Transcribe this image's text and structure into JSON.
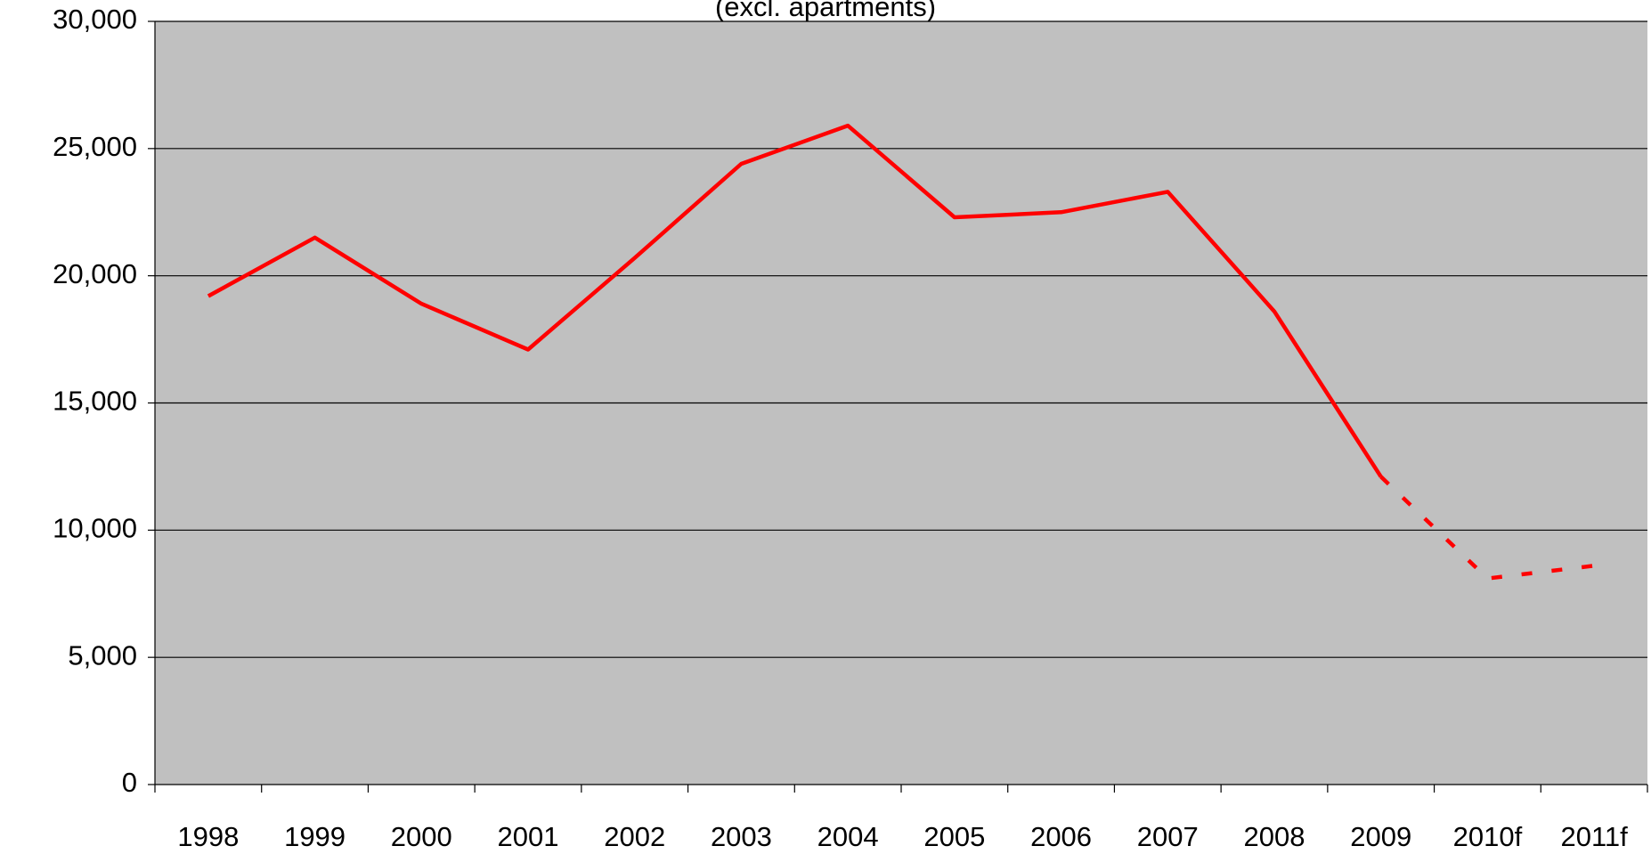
{
  "chart_data": {
    "type": "line",
    "subtitle": "(excl. apartments)",
    "categories": [
      "1998",
      "1999",
      "2000",
      "2001",
      "2002",
      "2003",
      "2004",
      "2005",
      "2006",
      "2007",
      "2008",
      "2009",
      "2010f",
      "2011f"
    ],
    "values": [
      19200,
      21500,
      18900,
      17100,
      20700,
      24400,
      25900,
      22300,
      22500,
      23300,
      18600,
      12100,
      8100,
      8600
    ],
    "color": "#ff0000",
    "dashed_from": "2009",
    "plot_background": "#c0c0c0",
    "ylim": [
      0,
      30000
    ],
    "yticks": [
      0,
      {
        "value": 5000,
        "label": "5,000"
      },
      {
        "value": 10000,
        "label": "10,000"
      },
      {
        "value": 15000,
        "label": "15,000"
      },
      {
        "value": 20000,
        "label": "20,000"
      },
      {
        "value": 25000,
        "label": "25,000"
      },
      {
        "value": 30000,
        "label": "30,000"
      }
    ],
    "grid": true
  }
}
